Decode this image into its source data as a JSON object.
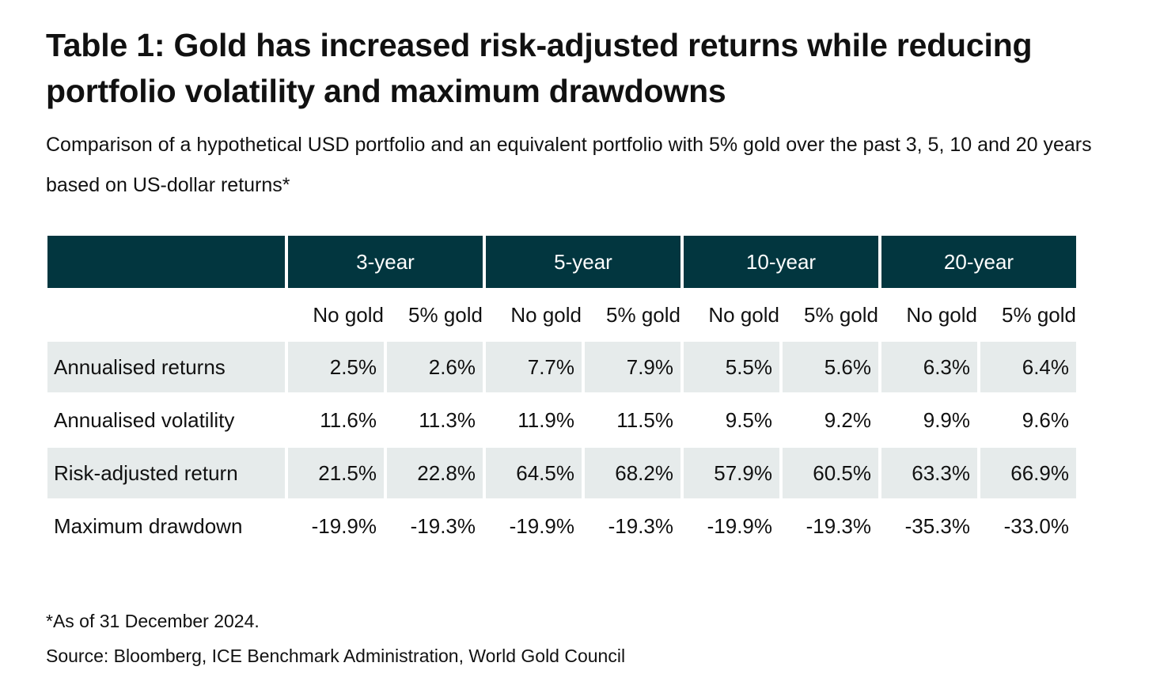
{
  "title": "Table 1: Gold has increased risk-adjusted returns while reducing portfolio volatility and maximum drawdowns",
  "subtitle": "Comparison of a hypothetical USD portfolio and an equivalent portfolio with 5% gold over the past 3, 5, 10 and 20 years based on US-dollar returns*",
  "table": {
    "periods": [
      "3-year",
      "5-year",
      "10-year",
      "20-year"
    ],
    "subheaders": [
      "No gold",
      "5% gold",
      "No gold",
      "5% gold",
      "No gold",
      "5% gold",
      "No gold",
      "5% gold"
    ],
    "rows": [
      {
        "label": "Annualised returns",
        "values": [
          "2.5%",
          "2.6%",
          "7.7%",
          "7.9%",
          "5.5%",
          "5.6%",
          "6.3%",
          "6.4%"
        ]
      },
      {
        "label": "Annualised volatility",
        "values": [
          "11.6%",
          "11.3%",
          "11.9%",
          "11.5%",
          "9.5%",
          "9.2%",
          "9.9%",
          "9.6%"
        ]
      },
      {
        "label": "Risk-adjusted return",
        "values": [
          "21.5%",
          "22.8%",
          "64.5%",
          "68.2%",
          "57.9%",
          "60.5%",
          "63.3%",
          "66.9%"
        ]
      },
      {
        "label": "Maximum drawdown",
        "values": [
          "-19.9%",
          "-19.3%",
          "-19.9%",
          "-19.3%",
          "-19.9%",
          "-19.3%",
          "-35.3%",
          "-33.0%"
        ]
      }
    ]
  },
  "footnote": "*As of 31 December 2024.",
  "source": "Source: Bloomberg, ICE Benchmark Administration, World Gold Council",
  "colors": {
    "header_bg": "#02363f",
    "shaded_row_bg": "#e6ebeb"
  }
}
